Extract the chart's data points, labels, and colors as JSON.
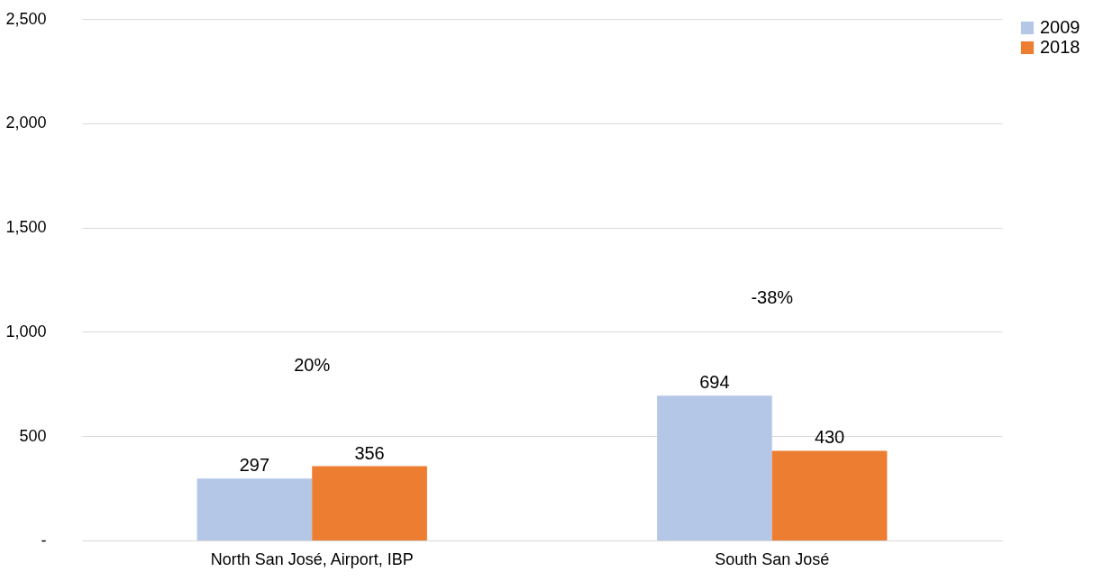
{
  "chart_data": {
    "type": "bar",
    "categories": [
      "North San José, Airport, IBP",
      "South San José"
    ],
    "series": [
      {
        "name": "2009",
        "color": "#b4c7e7",
        "values": [
          297,
          694
        ]
      },
      {
        "name": "2018",
        "color": "#ed7d31",
        "values": [
          356,
          430
        ]
      }
    ],
    "ylim": [
      0,
      2500
    ],
    "yticks": [
      {
        "value": 0,
        "label": "-"
      },
      500,
      {
        "value": 1000,
        "label": "1,000"
      },
      {
        "value": 1500,
        "label": "1,500"
      },
      {
        "value": 2000,
        "label": "2,000"
      },
      {
        "value": 2500,
        "label": "2,500"
      }
    ],
    "grid": "y",
    "legend": "right",
    "data_labels": true,
    "annotations": [
      "20%",
      "-38%"
    ]
  }
}
